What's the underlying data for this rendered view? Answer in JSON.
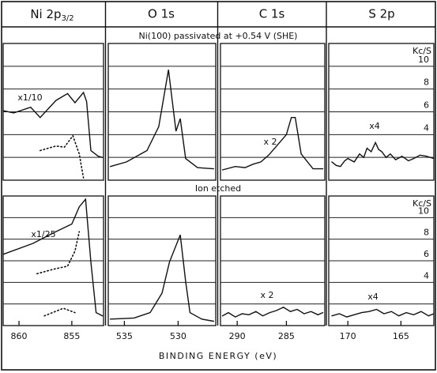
{
  "figure": {
    "column_titles": [
      {
        "main": "Ni 2p",
        "sub": "3/2"
      },
      "O 1s",
      "C 1s",
      "S 2p"
    ],
    "row_titles": [
      "Ni(100) passivated at +0.54 V (SHE)",
      "Ion etched"
    ],
    "xlabel": "BINDING ENERGY (eV)"
  },
  "chart_data": [
    {
      "type": "line",
      "xlim": [
        861.5,
        852
      ],
      "ylim": [
        0,
        12
      ],
      "grid_y": [
        2,
        4,
        6,
        8,
        10
      ],
      "annotation": "x1/10",
      "series": [
        {
          "color": "#111",
          "style": "solid",
          "x": [
            861.5,
            860.5,
            858.9,
            858,
            856.5,
            855.4,
            854.7,
            853.9,
            853.6,
            853.2,
            852.5,
            852.1
          ],
          "values": [
            6.1,
            5.9,
            6.4,
            5.5,
            7.0,
            7.6,
            6.8,
            7.7,
            6.9,
            2.6,
            2.1,
            2.0
          ]
        },
        {
          "color": "#111",
          "style": "dotted",
          "x": [
            858.0,
            856.5,
            855.7,
            854.9,
            854.3,
            853.9
          ],
          "values": [
            2.6,
            3.0,
            2.9,
            3.9,
            2.3,
            0.2
          ]
        }
      ]
    },
    {
      "type": "line",
      "xlim": [
        536.5,
        526.5
      ],
      "ylim": [
        0,
        12
      ],
      "grid_y": [
        2,
        4,
        6,
        8,
        10
      ],
      "series": [
        {
          "color": "#111",
          "style": "solid",
          "x": [
            536.3,
            534.8,
            532.9,
            531.8,
            530.9,
            530.6,
            530.2,
            529.8,
            529.3,
            528.2,
            526.7
          ],
          "values": [
            1.2,
            1.6,
            2.6,
            4.7,
            9.7,
            7.4,
            4.3,
            5.4,
            1.9,
            1.1,
            1.0
          ]
        }
      ]
    },
    {
      "type": "line",
      "xlim": [
        291.7,
        281.1
      ],
      "ylim": [
        0,
        12
      ],
      "grid_y": [
        2,
        4,
        6,
        8,
        10
      ],
      "annotation": "x 2",
      "series": [
        {
          "color": "#111",
          "style": "solid",
          "x": [
            291.5,
            290.2,
            289.2,
            288.4,
            287.6,
            286.8,
            286,
            285,
            284.5,
            284.1,
            283.5,
            282.3,
            281.3
          ],
          "values": [
            0.9,
            1.2,
            1.1,
            1.4,
            1.6,
            2.2,
            3.0,
            4.0,
            5.5,
            5.5,
            2.3,
            1.0,
            1.0
          ]
        }
      ]
    },
    {
      "type": "line",
      "xlim": [
        171.8,
        161.9
      ],
      "ylim": [
        0,
        12
      ],
      "grid_y": [
        2,
        4,
        6,
        8,
        10
      ],
      "annotation": "x4",
      "ylabel": "Kc/S",
      "yticks": [
        4,
        6,
        8,
        10
      ],
      "series": [
        {
          "color": "#111",
          "style": "solid",
          "x": [
            171.5,
            171.1,
            170.7,
            170.3,
            170,
            169.4,
            168.9,
            168.5,
            168.2,
            167.8,
            167.4,
            167.1,
            166.8,
            166.4,
            166,
            165.5,
            164.9,
            164.3,
            163.8,
            163.2,
            162.6,
            161.9
          ],
          "values": [
            1.6,
            1.3,
            1.2,
            1.7,
            1.9,
            1.6,
            2.3,
            2.0,
            2.8,
            2.5,
            3.3,
            2.7,
            2.5,
            2.0,
            2.3,
            1.8,
            2.1,
            1.7,
            1.9,
            2.2,
            2.1,
            1.9
          ]
        }
      ]
    },
    {
      "type": "line",
      "xlim": [
        861.5,
        852
      ],
      "ylim": [
        0,
        12
      ],
      "grid_y": [
        2,
        4,
        6,
        8,
        10
      ],
      "annotation": "x1/25",
      "xticks": [
        860,
        855
      ],
      "series": [
        {
          "color": "#111",
          "style": "solid",
          "x": [
            861.5,
            858.7,
            856.5,
            855,
            854.3,
            853.7,
            853.2,
            852.7,
            852.1
          ],
          "values": [
            6.6,
            7.6,
            8.7,
            9.4,
            11,
            11.7,
            5.9,
            1.2,
            0.9
          ]
        },
        {
          "color": "#111",
          "style": "dotted",
          "x": [
            858.3,
            856.8,
            855.4,
            854.7,
            854.3
          ],
          "values": [
            4.8,
            5.2,
            5.5,
            6.9,
            8.7
          ]
        },
        {
          "color": "#111",
          "style": "dotted",
          "x": [
            857.6,
            855.8,
            854.7
          ],
          "values": [
            0.9,
            1.6,
            1.2
          ]
        }
      ]
    },
    {
      "type": "line",
      "xlim": [
        536.5,
        526.5
      ],
      "ylim": [
        0,
        12
      ],
      "grid_y": [
        2,
        4,
        6,
        8,
        10
      ],
      "xticks": [
        535,
        530
      ],
      "series": [
        {
          "color": "#111",
          "style": "solid",
          "x": [
            536.3,
            534.1,
            532.6,
            531.5,
            530.8,
            529.8,
            529.3,
            528.9,
            527.8,
            526.7
          ],
          "values": [
            0.6,
            0.7,
            1.2,
            3.0,
            5.9,
            8.4,
            4.1,
            1.2,
            0.6,
            0.4
          ]
        }
      ]
    },
    {
      "type": "line",
      "xlim": [
        291.7,
        281.1
      ],
      "ylim": [
        0,
        12
      ],
      "grid_y": [
        2,
        4,
        6,
        8,
        10
      ],
      "annotation": "x 2",
      "xticks": [
        290,
        285
      ],
      "series": [
        {
          "color": "#111",
          "style": "solid",
          "x": [
            291.5,
            290.9,
            290.2,
            289.5,
            288.8,
            288.1,
            287.4,
            286.7,
            286,
            285.3,
            284.6,
            283.9,
            283.2,
            282.5,
            281.8,
            281.3
          ],
          "values": [
            0.9,
            1.2,
            0.8,
            1.1,
            1.0,
            1.3,
            0.9,
            1.2,
            1.4,
            1.7,
            1.3,
            1.5,
            1.1,
            1.3,
            1.0,
            1.2
          ]
        }
      ]
    },
    {
      "type": "line",
      "xlim": [
        171.8,
        161.9
      ],
      "ylim": [
        0,
        12
      ],
      "grid_y": [
        2,
        4,
        6,
        8,
        10
      ],
      "annotation": "x4",
      "ylabel": "Kc/S",
      "yticks": [
        4,
        6,
        8,
        10
      ],
      "xticks": [
        170,
        165
      ],
      "series": [
        {
          "color": "#111",
          "style": "solid",
          "x": [
            171.5,
            170.8,
            170.1,
            169.4,
            168.7,
            168,
            167.3,
            166.6,
            165.9,
            165.2,
            164.5,
            163.8,
            163.1,
            162.4,
            161.9
          ],
          "values": [
            0.9,
            1.1,
            0.8,
            1.0,
            1.2,
            1.3,
            1.5,
            1.1,
            1.3,
            0.9,
            1.2,
            1.0,
            1.3,
            0.9,
            1.1
          ]
        }
      ]
    }
  ]
}
